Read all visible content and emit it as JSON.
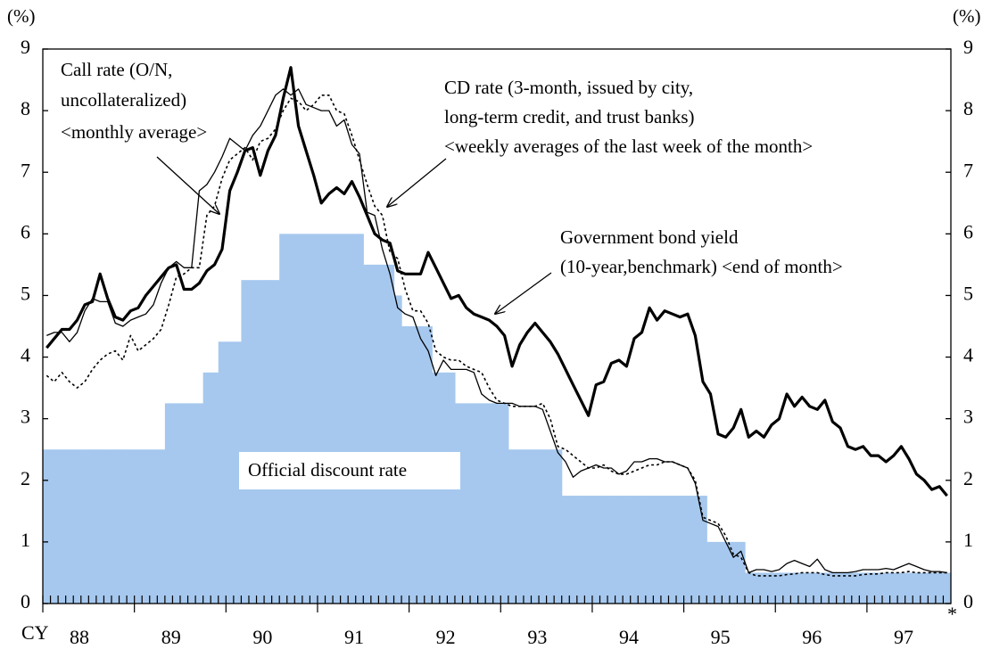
{
  "chart_data": {
    "type": "line",
    "y_unit_label": "(%)",
    "y2_unit_label": "(%)",
    "x_axis_prefix": "CY",
    "footnote_mark": "*",
    "ylim": [
      0,
      9
    ],
    "yticks": [
      0,
      1,
      2,
      3,
      4,
      5,
      6,
      7,
      8,
      9
    ],
    "y2lim": [
      0,
      9
    ],
    "y2ticks": [
      0,
      1,
      2,
      3,
      4,
      5,
      6,
      7,
      8,
      9
    ],
    "categories": [
      null,
      null,
      null,
      null,
      null,
      "88",
      null,
      null,
      null,
      null,
      null,
      null,
      null,
      null,
      null,
      null,
      null,
      "89",
      null,
      null,
      null,
      null,
      null,
      null,
      null,
      null,
      null,
      null,
      null,
      "90",
      null,
      null,
      null,
      null,
      null,
      null,
      null,
      null,
      null,
      null,
      null,
      "91",
      null,
      null,
      null,
      null,
      null,
      null,
      null,
      null,
      null,
      null,
      null,
      "92",
      null,
      null,
      null,
      null,
      null,
      null,
      null,
      null,
      null,
      null,
      null,
      "93",
      null,
      null,
      null,
      null,
      null,
      null,
      null,
      null,
      null,
      null,
      null,
      "94",
      null,
      null,
      null,
      null,
      null,
      null,
      null,
      null,
      null,
      null,
      null,
      "95",
      null,
      null,
      null,
      null,
      null,
      null,
      null,
      null,
      null,
      null,
      null,
      "96",
      null,
      null,
      null,
      null,
      null,
      null,
      null,
      null,
      null,
      null,
      null,
      "97",
      null,
      null,
      null,
      null,
      null
    ],
    "series": [
      {
        "kind": "step_area",
        "color": "#a6c8ee",
        "values": [
          2.5,
          2.5,
          2.5,
          2.5,
          2.5,
          2.5,
          2.5,
          2.5,
          2.5,
          2.5,
          2.5,
          2.5,
          2.5,
          2.5,
          2.5,
          2.5,
          3.25,
          3.25,
          3.25,
          3.25,
          3.25,
          3.75,
          3.75,
          4.25,
          4.25,
          4.25,
          5.25,
          5.25,
          5.25,
          5.25,
          5.25,
          6,
          6,
          6,
          6,
          6,
          6,
          6,
          6,
          6,
          6,
          6,
          5.5,
          5.5,
          5.5,
          5.5,
          5,
          4.5,
          4.5,
          4.5,
          4.5,
          3.75,
          3.75,
          3.75,
          3.25,
          3.25,
          3.25,
          3.25,
          3.25,
          3.25,
          3.25,
          2.5,
          2.5,
          2.5,
          2.5,
          2.5,
          2.5,
          2.5,
          1.75,
          1.75,
          1.75,
          1.75,
          1.75,
          1.75,
          1.75,
          1.75,
          1.75,
          1.75,
          1.75,
          1.75,
          1.75,
          1.75,
          1.75,
          1.75,
          1.75,
          1.75,
          1.75,
          1,
          1,
          1,
          1,
          1,
          0.5,
          0.5,
          0.5,
          0.5,
          0.5,
          0.5,
          0.5,
          0.5,
          0.5,
          0.5,
          0.5,
          0.5,
          0.5,
          0.5,
          0.5,
          0.5,
          0.5,
          0.5,
          0.5,
          0.5,
          0.5,
          0.5,
          0.5,
          0.5,
          0.5,
          0.5,
          0.5
        ]
      },
      {
        "kind": "line",
        "color": "#000000",
        "line_width": 1.3,
        "dash": "none",
        "values": [
          4.35,
          4.4,
          4.4,
          4.25,
          4.4,
          4.75,
          4.95,
          4.9,
          4.9,
          4.55,
          4.5,
          4.6,
          4.65,
          4.7,
          4.85,
          5.2,
          5.45,
          5.55,
          5.45,
          5.45,
          6.7,
          6.8,
          7.0,
          7.25,
          7.55,
          7.45,
          7.35,
          7.6,
          7.75,
          8.0,
          8.25,
          8.35,
          8.25,
          8.35,
          8.1,
          8.05,
          8.0,
          8.0,
          7.75,
          7.85,
          7.45,
          7.3,
          6.35,
          6.3,
          5.75,
          5.35,
          4.8,
          4.7,
          4.65,
          4.3,
          4.1,
          3.7,
          3.95,
          3.8,
          3.8,
          3.8,
          3.75,
          3.4,
          3.3,
          3.25,
          3.25,
          3.25,
          3.2,
          3.2,
          3.2,
          3.15,
          2.8,
          2.45,
          2.3,
          2.05,
          2.15,
          2.2,
          2.25,
          2.2,
          2.2,
          2.1,
          2.15,
          2.3,
          2.3,
          2.35,
          2.35,
          2.3,
          2.3,
          2.25,
          2.2,
          1.95,
          1.35,
          1.3,
          1.25,
          1.0,
          0.75,
          0.85,
          0.5,
          0.55,
          0.55,
          0.52,
          0.55,
          0.65,
          0.7,
          0.65,
          0.6,
          0.72,
          0.55,
          0.5,
          0.5,
          0.5,
          0.52,
          0.55,
          0.55,
          0.55,
          0.57,
          0.55,
          0.6,
          0.65,
          0.6,
          0.55,
          0.52,
          0.52,
          0.5
        ]
      },
      {
        "kind": "line",
        "color": "#000000",
        "line_width": 1.6,
        "dash": "3 3",
        "values": [
          3.7,
          3.6,
          3.75,
          3.6,
          3.5,
          3.6,
          3.8,
          3.95,
          4.05,
          4.1,
          3.95,
          4.35,
          4.1,
          4.2,
          4.3,
          4.45,
          4.85,
          5.3,
          5.35,
          5.45,
          5.45,
          6.3,
          6.45,
          6.9,
          7.2,
          7.3,
          7.4,
          7.2,
          7.5,
          7.55,
          7.7,
          8.0,
          8.2,
          8.15,
          8.0,
          8.1,
          8.25,
          8.25,
          8.0,
          7.95,
          7.6,
          7.2,
          6.8,
          6.45,
          6.3,
          5.7,
          5.6,
          5.1,
          4.75,
          4.75,
          4.55,
          4.1,
          4.0,
          3.95,
          3.95,
          3.85,
          3.8,
          3.75,
          3.5,
          3.3,
          3.25,
          3.2,
          3.2,
          3.2,
          3.2,
          3.25,
          3.0,
          2.55,
          2.5,
          2.4,
          2.3,
          2.2,
          2.2,
          2.25,
          2.15,
          2.1,
          2.1,
          2.15,
          2.2,
          2.25,
          2.25,
          2.3,
          2.3,
          2.25,
          2.2,
          2.0,
          1.4,
          1.35,
          1.3,
          1.1,
          0.8,
          0.75,
          0.5,
          0.45,
          0.45,
          0.45,
          0.45,
          0.47,
          0.48,
          0.5,
          0.5,
          0.5,
          0.47,
          0.45,
          0.45,
          0.45,
          0.45,
          0.47,
          0.48,
          0.48,
          0.5,
          0.5,
          0.5,
          0.52,
          0.5,
          0.5,
          0.5,
          0.5,
          0.5
        ]
      },
      {
        "kind": "line",
        "color": "#000000",
        "line_width": 3.2,
        "dash": "none",
        "values": [
          4.15,
          4.3,
          4.45,
          4.45,
          4.6,
          4.85,
          4.9,
          5.35,
          4.95,
          4.65,
          4.6,
          4.75,
          4.8,
          5.0,
          5.15,
          5.3,
          5.45,
          5.5,
          5.1,
          5.1,
          5.2,
          5.4,
          5.5,
          5.75,
          6.7,
          7.0,
          7.35,
          7.4,
          6.95,
          7.35,
          7.6,
          8.2,
          8.7,
          7.75,
          7.35,
          6.95,
          6.5,
          6.65,
          6.75,
          6.65,
          6.85,
          6.6,
          6.3,
          6.0,
          5.9,
          5.85,
          5.4,
          5.35,
          5.35,
          5.35,
          5.7,
          5.45,
          5.2,
          4.95,
          5.0,
          4.8,
          4.7,
          4.65,
          4.6,
          4.5,
          4.35,
          3.85,
          4.2,
          4.4,
          4.55,
          4.4,
          4.25,
          4.05,
          3.8,
          3.55,
          3.3,
          3.05,
          3.55,
          3.6,
          3.9,
          3.95,
          3.85,
          4.3,
          4.4,
          4.8,
          4.6,
          4.75,
          4.7,
          4.65,
          4.7,
          4.35,
          3.6,
          3.4,
          2.75,
          2.7,
          2.85,
          3.15,
          2.7,
          2.8,
          2.7,
          2.9,
          3.0,
          3.4,
          3.2,
          3.35,
          3.2,
          3.15,
          3.3,
          2.95,
          2.85,
          2.55,
          2.5,
          2.55,
          2.4,
          2.4,
          2.3,
          2.4,
          2.55,
          2.35,
          2.1,
          2.0,
          1.85,
          1.9,
          1.75
        ]
      }
    ],
    "annotations": [
      {
        "lines": [
          "Call rate (O/N,",
          "uncollateralized)",
          "<monthly average>"
        ]
      },
      {
        "lines": [
          "CD rate (3-month, issued by city,",
          "long-term credit, and trust banks)",
          "<weekly averages of the last week of the month>"
        ]
      },
      {
        "lines": [
          "Government bond yield",
          "(10-year,benchmark) <end of month>"
        ]
      },
      {
        "lines": [
          "Official discount rate"
        ]
      }
    ]
  }
}
